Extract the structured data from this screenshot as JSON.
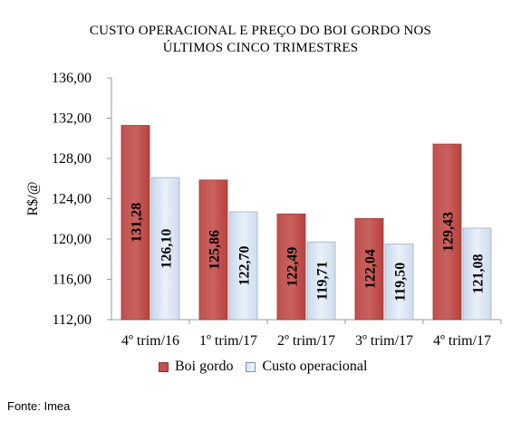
{
  "chart_data": {
    "type": "bar",
    "title_lines": [
      "CUSTO OPERACIONAL E PREÇO DO BOI GORDO NOS",
      "ÚLTIMOS CINCO TRIMESTRES"
    ],
    "ylabel": "R$/@",
    "ylim": [
      112,
      136
    ],
    "yticks": [
      "112,00",
      "116,00",
      "120,00",
      "124,00",
      "128,00",
      "132,00",
      "136,00"
    ],
    "categories": [
      "4º trim/16",
      "1º trim/17",
      "2º trim/17",
      "3º trim/17",
      "4º trim/17"
    ],
    "series": [
      {
        "name": "Boi gordo",
        "values": [
          131.28,
          125.86,
          122.49,
          122.04,
          129.43
        ],
        "labels": [
          "131,28",
          "125,86",
          "122,49",
          "122,04",
          "129,43"
        ],
        "color": "#c0504d"
      },
      {
        "name": "Custo operacional",
        "values": [
          126.1,
          122.7,
          119.71,
          119.5,
          121.08
        ],
        "labels": [
          "126,10",
          "122,70",
          "119,71",
          "119,50",
          "121,08"
        ],
        "color": "#dbe5f1"
      }
    ],
    "legend_position": "bottom",
    "grid": false
  },
  "source": "Fonte: Imea"
}
